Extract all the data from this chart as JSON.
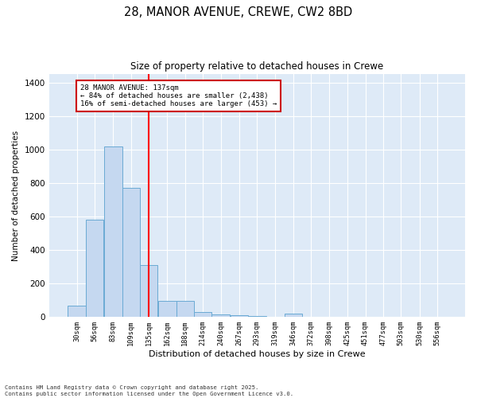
{
  "title1": "28, MANOR AVENUE, CREWE, CW2 8BD",
  "title2": "Size of property relative to detached houses in Crewe",
  "xlabel": "Distribution of detached houses by size in Crewe",
  "ylabel": "Number of detached properties",
  "footnote": "Contains HM Land Registry data © Crown copyright and database right 2025.\nContains public sector information licensed under the Open Government Licence v3.0.",
  "annotation_line1": "28 MANOR AVENUE: 137sqm",
  "annotation_line2": "← 84% of detached houses are smaller (2,438)",
  "annotation_line3": "16% of semi-detached houses are larger (453) →",
  "bar_color": "#c5d8f0",
  "bar_edge_color": "#6aaad4",
  "red_line_x": 135,
  "annotation_box_color": "#cc0000",
  "background_color": "#deeaf7",
  "categories": [
    30,
    56,
    83,
    109,
    135,
    162,
    188,
    214,
    240,
    267,
    293,
    319,
    346,
    372,
    398,
    425,
    451,
    477,
    503,
    530,
    556
  ],
  "bar_heights": [
    65,
    580,
    1020,
    770,
    310,
    95,
    95,
    30,
    15,
    10,
    5,
    0,
    20,
    0,
    0,
    0,
    0,
    0,
    0,
    0,
    0
  ],
  "bin_width": 26,
  "ylim": [
    0,
    1450
  ],
  "yticks": [
    0,
    200,
    400,
    600,
    800,
    1000,
    1200,
    1400
  ]
}
